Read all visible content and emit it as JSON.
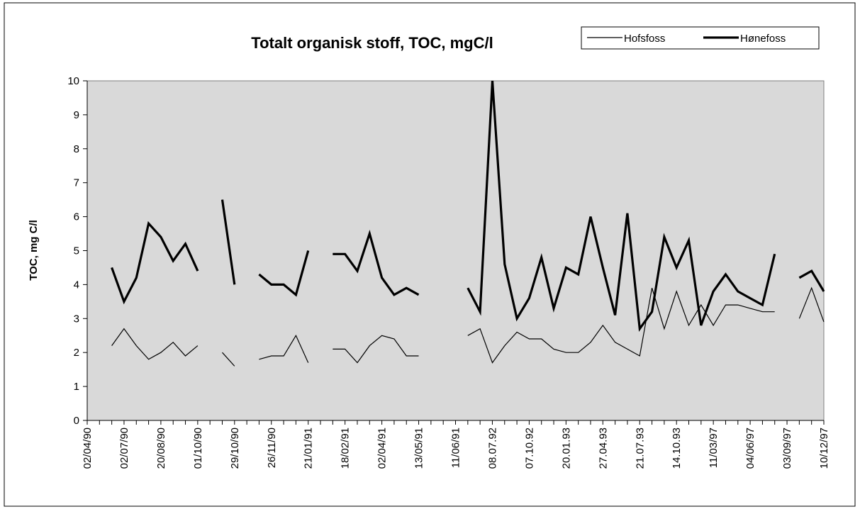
{
  "chart_data": {
    "type": "line",
    "title": "Totalt organisk stoff, TOC, mgC/l",
    "y_label": "TOC, mg C/l",
    "categories": [
      "02/04/90",
      null,
      null,
      "02/07/90",
      null,
      null,
      "20/08/90",
      null,
      null,
      "01/10/90",
      null,
      null,
      "29/10/90",
      null,
      null,
      "26/11/90",
      null,
      null,
      "21/01/91",
      null,
      null,
      "18/02/91",
      null,
      null,
      "02/04/91",
      null,
      null,
      "13/05/91",
      null,
      null,
      "11/06/91",
      null,
      null,
      "08.07.92",
      null,
      null,
      "07.10.92",
      null,
      null,
      "20.01.93",
      null,
      null,
      "27.04.93",
      null,
      null,
      "21.07.93",
      null,
      null,
      "14.10.93",
      null,
      null,
      "11/03/97",
      null,
      null,
      "04/06/97",
      null,
      null,
      "03/09/97",
      null,
      null,
      "10/12/97"
    ],
    "series": [
      {
        "name": "Hofsfoss",
        "color": "#000000",
        "values": [
          null,
          null,
          2.2,
          2.7,
          2.2,
          1.8,
          2.0,
          2.3,
          1.9,
          2.2,
          null,
          2.0,
          1.6,
          null,
          1.8,
          1.9,
          1.9,
          2.5,
          1.7,
          null,
          2.1,
          2.1,
          1.7,
          2.2,
          2.5,
          2.4,
          1.9,
          1.9,
          null,
          null,
          null,
          2.5,
          2.7,
          1.7,
          2.2,
          2.6,
          2.4,
          2.4,
          2.1,
          2.0,
          2.0,
          2.3,
          2.8,
          2.3,
          2.1,
          1.9,
          3.9,
          2.7,
          3.8,
          2.8,
          3.4,
          2.8,
          3.4,
          3.4,
          3.3,
          3.2,
          3.2,
          null,
          3.0,
          3.9,
          2.9
        ]
      },
      {
        "name": "Hønefoss",
        "color": "#000000",
        "values": [
          null,
          null,
          4.5,
          3.5,
          4.2,
          5.8,
          5.4,
          4.7,
          5.2,
          4.4,
          null,
          6.5,
          4.0,
          null,
          4.3,
          4.0,
          4.0,
          3.7,
          5.0,
          null,
          4.9,
          4.9,
          4.4,
          5.5,
          4.2,
          3.7,
          3.9,
          3.7,
          null,
          null,
          null,
          3.9,
          3.2,
          10,
          4.6,
          3.0,
          3.6,
          4.8,
          3.3,
          4.5,
          4.3,
          6.0,
          4.5,
          3.1,
          6.1,
          2.7,
          3.2,
          5.4,
          4.5,
          5.3,
          2.8,
          3.8,
          4.3,
          3.8,
          3.6,
          3.4,
          4.9,
          null,
          4.2,
          4.4,
          3.8
        ]
      }
    ],
    "ylim": [
      0,
      10
    ],
    "yticks": [
      0,
      1,
      2,
      3,
      4,
      5,
      6,
      7,
      8,
      9,
      10
    ],
    "plot_background": "#d9d9d9",
    "legend": "top-right"
  }
}
